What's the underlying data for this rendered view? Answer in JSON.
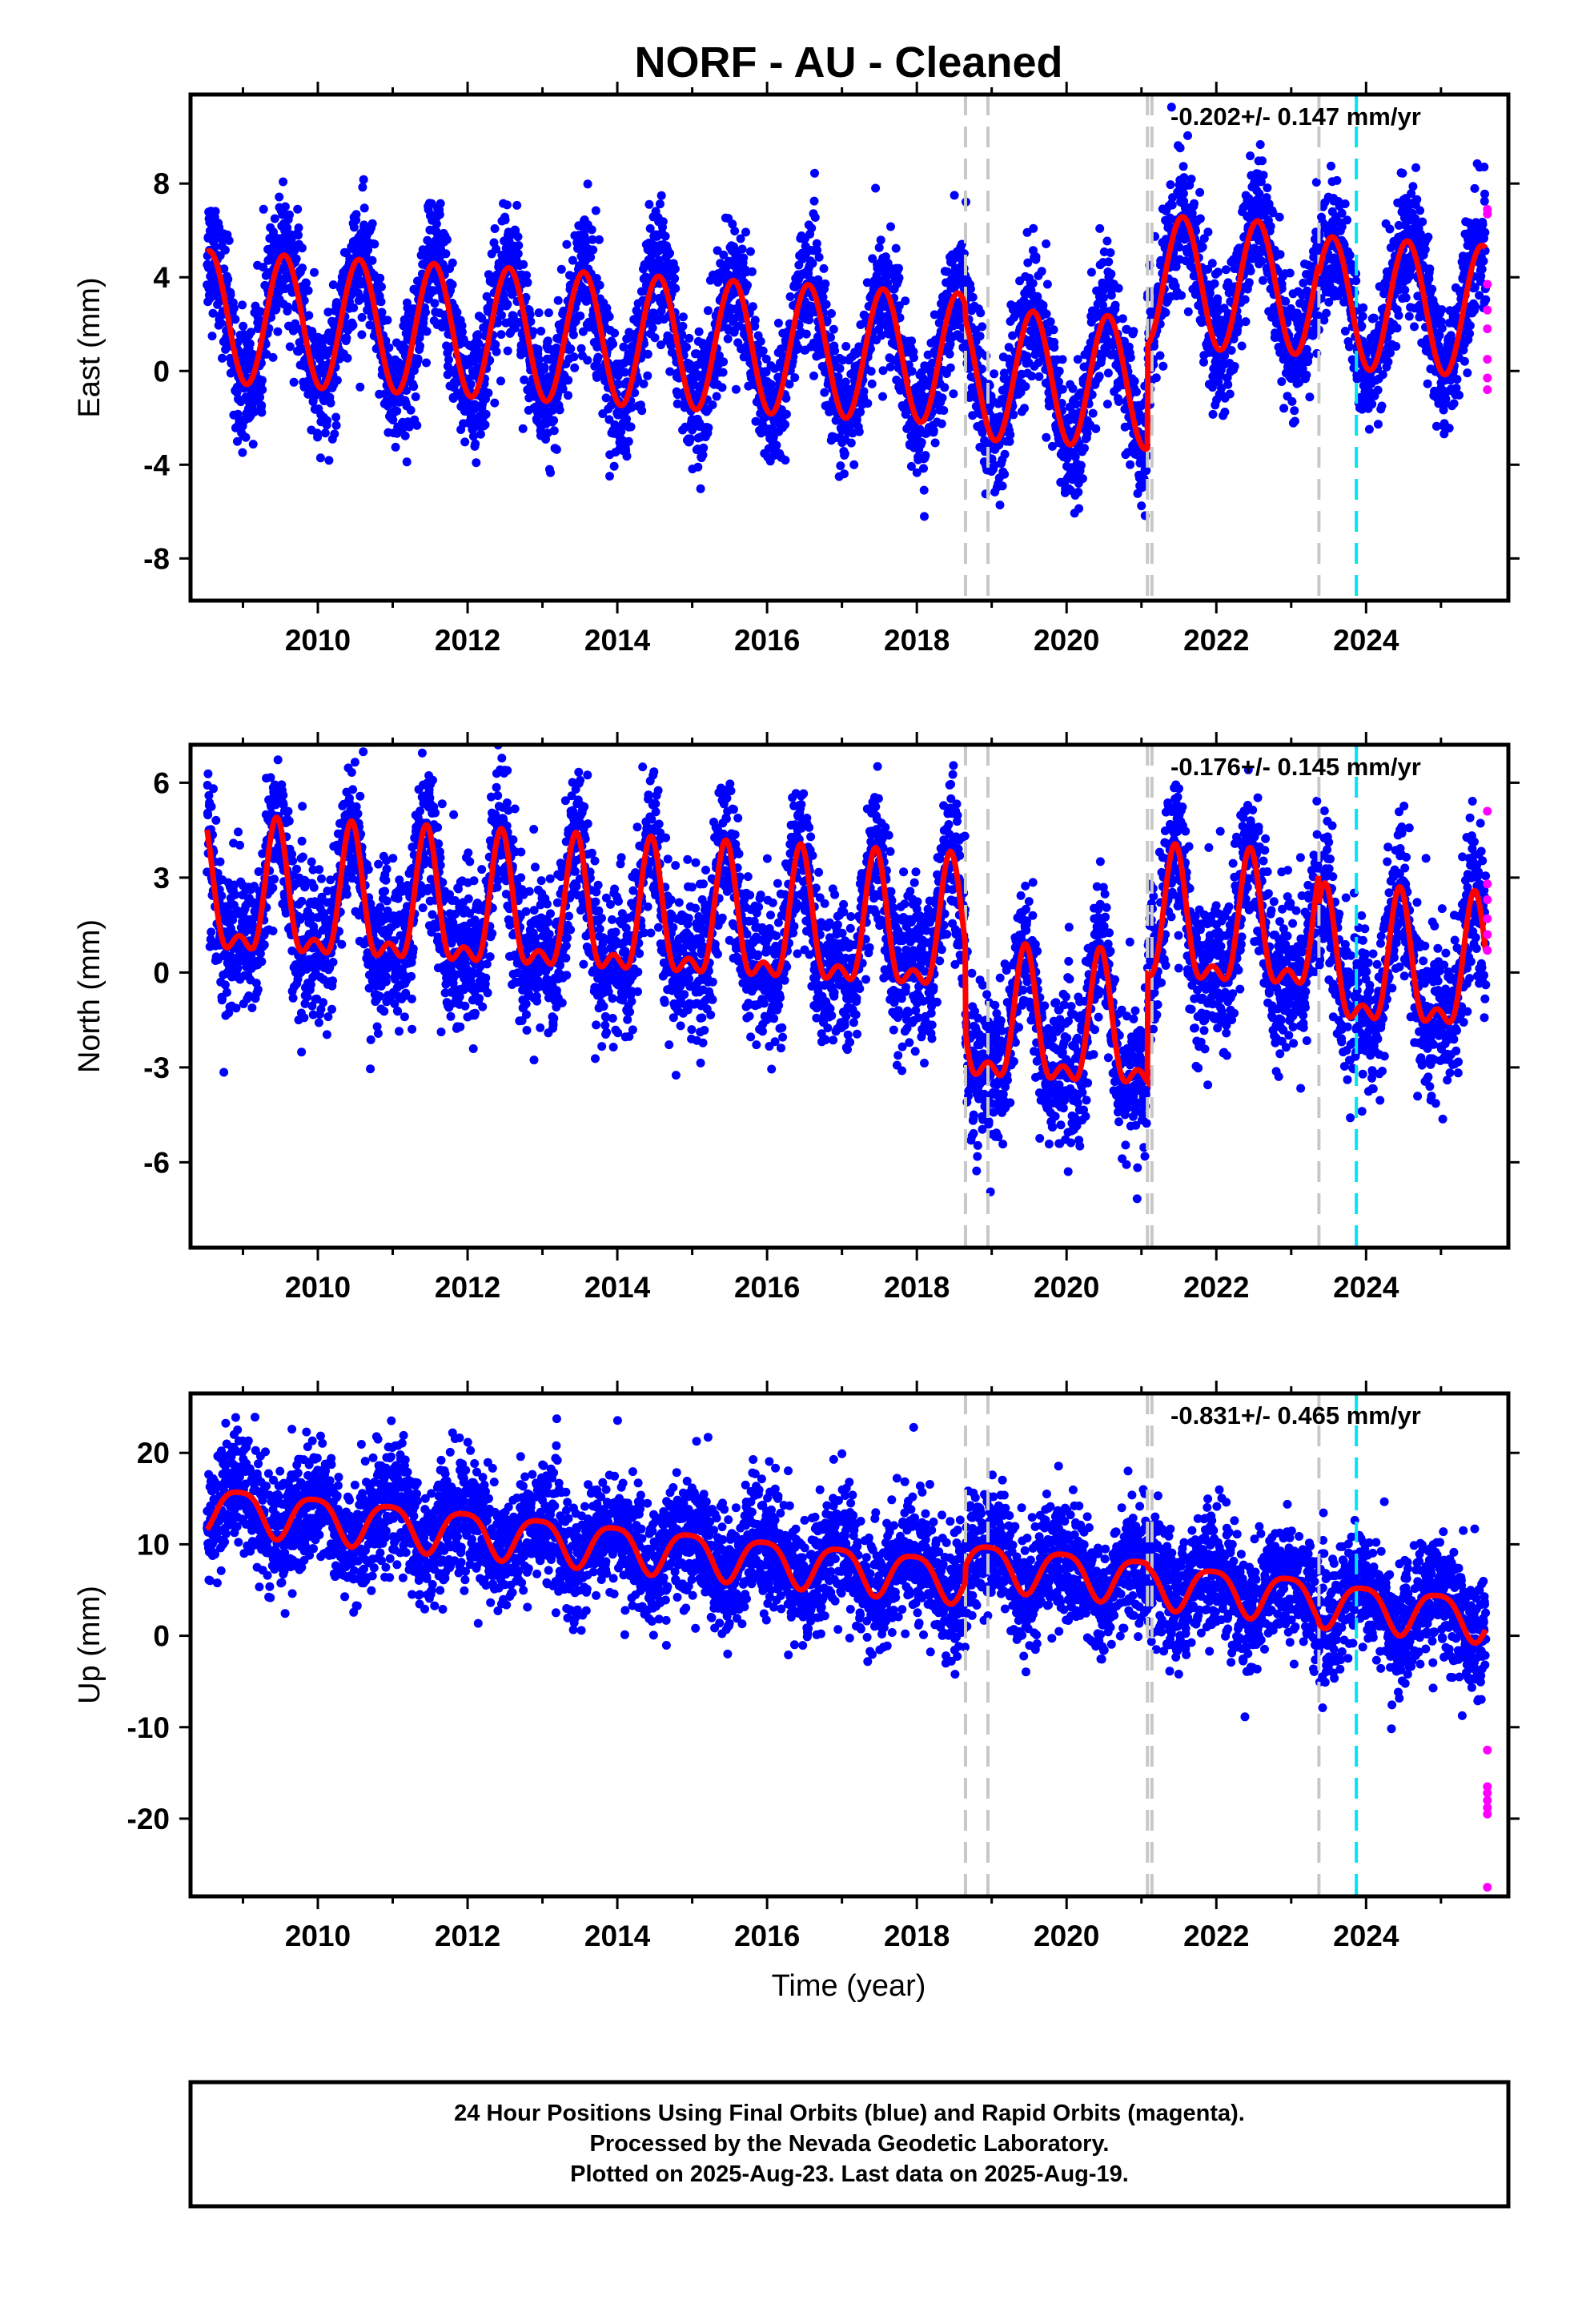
{
  "chart_data": {
    "title": "NORF  - AU - Cleaned",
    "type": "scatter",
    "x_label": "Time (year)",
    "x_range": [
      2008.3,
      2025.9
    ],
    "x_ticks": [
      2010,
      2012,
      2014,
      2016,
      2018,
      2020,
      2022,
      2024
    ],
    "equipment_changes": [
      2018.65,
      2018.95,
      2021.08,
      2021.14,
      2023.37
    ],
    "earthquake_events": [
      2023.87
    ],
    "colors": {
      "final": "#0000ff",
      "rapid": "#ff00ff",
      "model": "#ff0000",
      "equipment": "#c8c8c8",
      "earthquake": "#00e5ee"
    },
    "panels": [
      {
        "id": "east",
        "ylabel": "East (mm)",
        "rate": "-0.202+/- 0.147 mm/yr",
        "ylim": [
          -9.8,
          11.8
        ],
        "yticks": [
          -8,
          -4,
          0,
          4,
          8
        ],
        "noise": 1.35,
        "rapid_values": [
          6.9,
          6.7,
          3.7,
          2.6,
          1.8,
          0.5,
          -0.3,
          -0.8
        ],
        "model": {
          "seg_breaks": [
            2018.65,
            2021.08,
            2023.37
          ],
          "seg_offsets": [
            0,
            -0.6,
            3.8,
            3.3
          ],
          "a0": 0.8,
          "rate": -0.18,
          "amp1": 2.8,
          "phase1": 0.55,
          "amp2": 0,
          "phase2": 0
        }
      },
      {
        "id": "north",
        "ylabel": "North (mm)",
        "rate": "-0.176+/- 0.145 mm/yr",
        "ylim": [
          -8.7,
          7.2
        ],
        "yticks": [
          -6,
          -3,
          0,
          3,
          6
        ],
        "noise": 1.2,
        "rapid_values": [
          5.1,
          2.8,
          2.3,
          1.7,
          1.2,
          0.7
        ],
        "model": {
          "seg_breaks": [
            2018.65,
            2021.08,
            2023.37
          ],
          "seg_offsets": [
            0,
            -2.8,
            0.6,
            -0.4
          ],
          "a0": 1.2,
          "rate": -0.12,
          "amp1": 1.9,
          "phase1": 0.45,
          "amp2": 0.9,
          "phase2": 0.45
        }
      },
      {
        "id": "up",
        "ylabel": "Up (mm)",
        "rate": "-0.831+/- 0.465 mm/yr",
        "ylim": [
          -28.5,
          26.5
        ],
        "yticks": [
          -20,
          -10,
          0,
          10,
          20
        ],
        "noise": 3.3,
        "rapid_values": [
          -12.5,
          -16.5,
          -17.2,
          -18.0,
          -18.8,
          -19.5,
          -27.5
        ],
        "model": {
          "seg_breaks": [
            2018.65,
            2021.08,
            2023.37
          ],
          "seg_offsets": [
            0,
            1.8,
            1.5,
            1.2
          ],
          "a0": 7.5,
          "rate": -0.78,
          "amp1": 2.4,
          "phase1": 0.95,
          "amp2": 0.5,
          "phase2": 0.2
        }
      }
    ]
  },
  "footer": {
    "line1": "24 Hour Positions Using Final Orbits (blue) and Rapid Orbits (magenta).",
    "line2": "Processed by the Nevada Geodetic Laboratory.",
    "line3": "Plotted on 2025-Aug-23. Last data on 2025-Aug-19."
  }
}
